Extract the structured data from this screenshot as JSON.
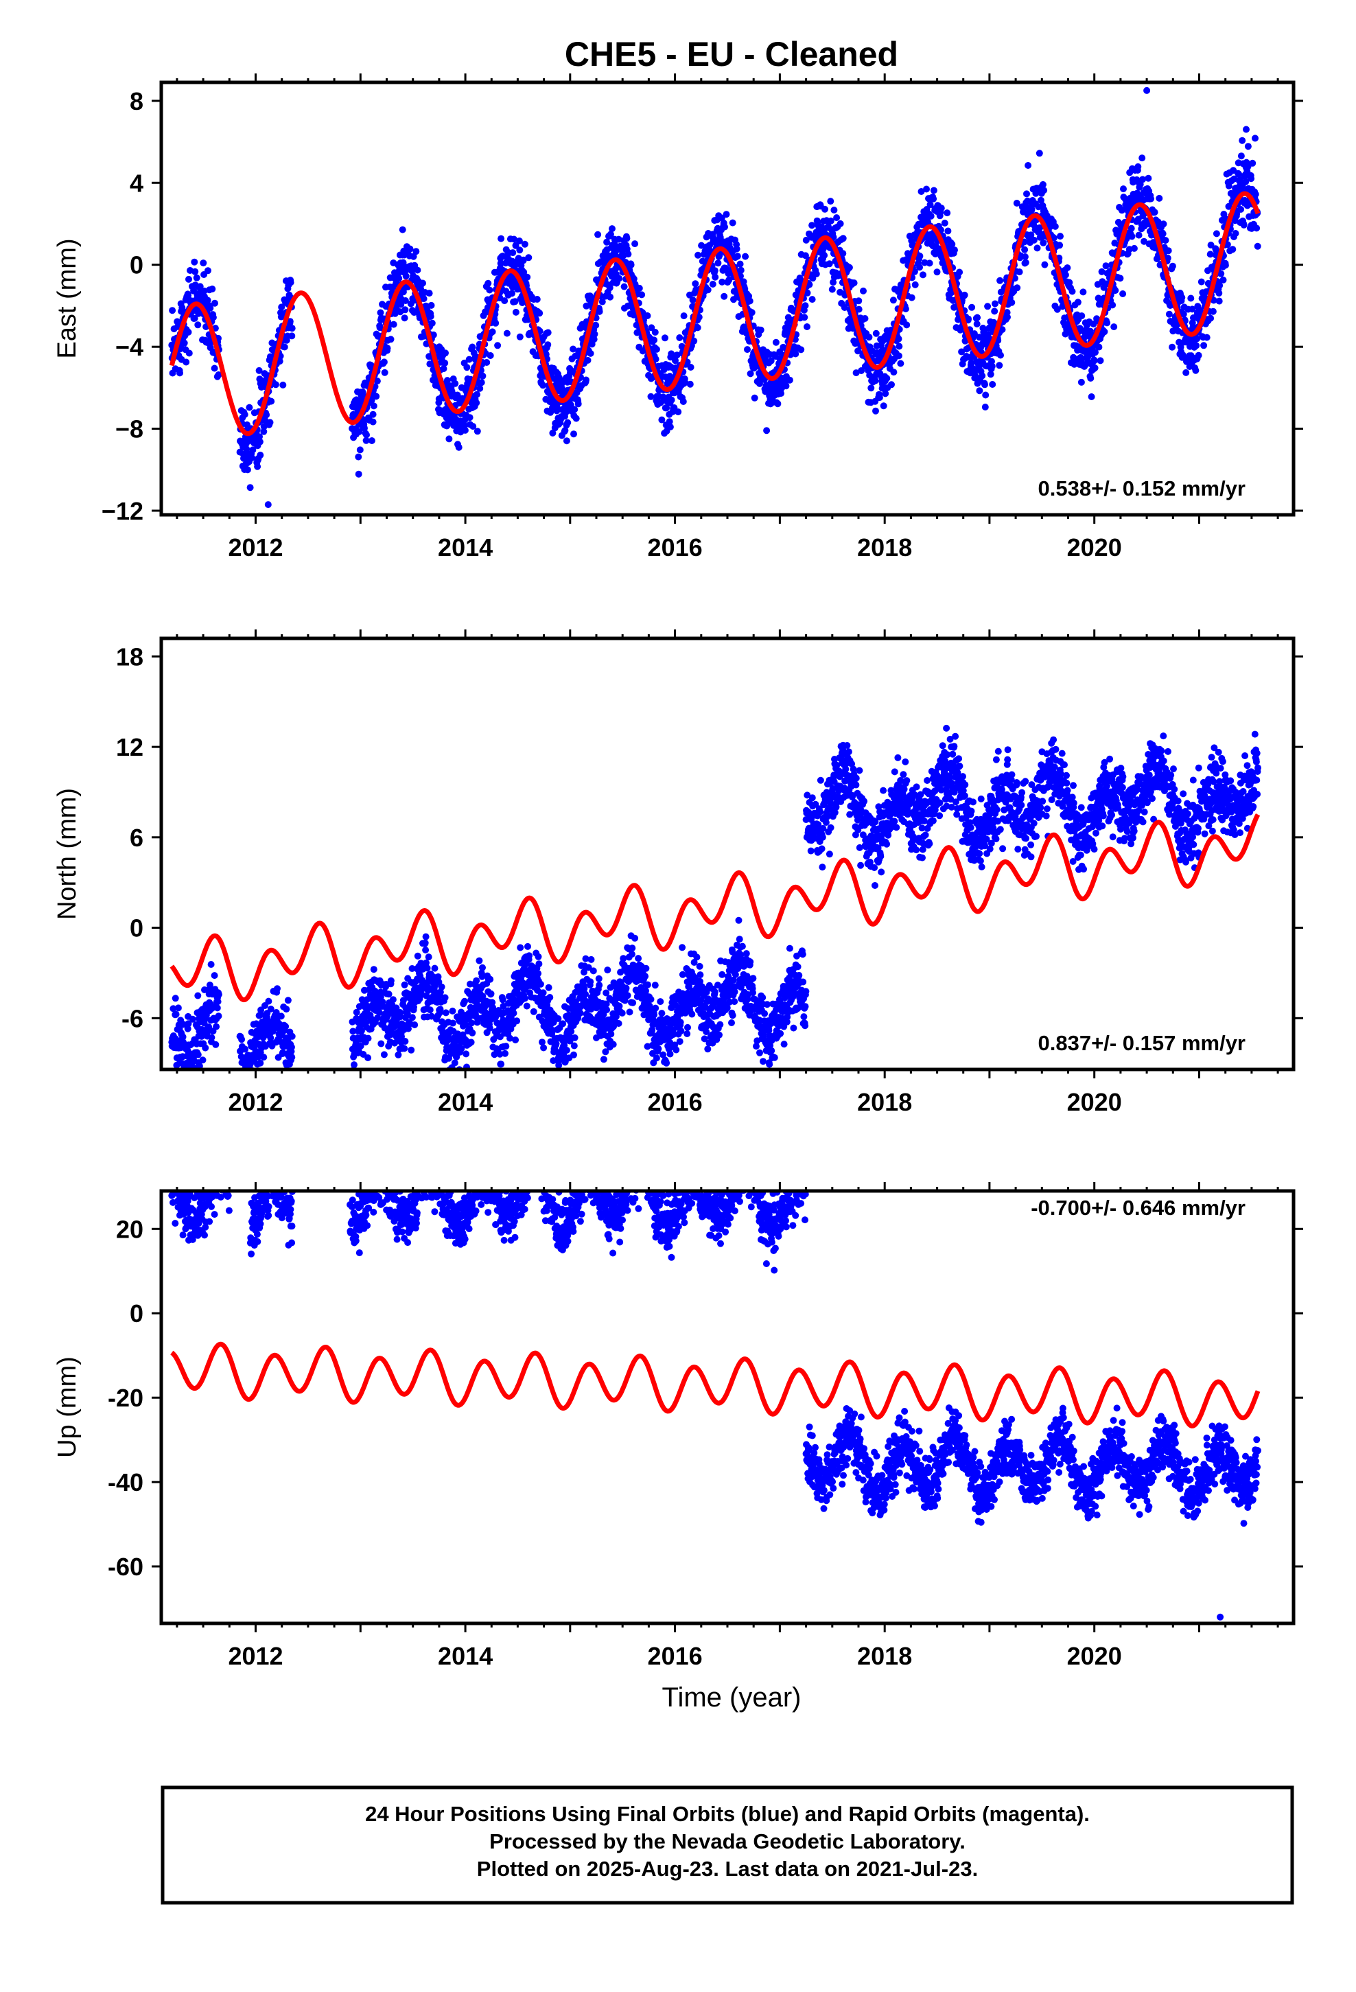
{
  "title": "CHE5  - EU - Cleaned",
  "xlabel": "Time (year)",
  "colors": {
    "data": "#0000ff",
    "model": "#ff0000",
    "frame": "#000000"
  },
  "footer": {
    "line1": "24 Hour Positions Using Final Orbits (blue) and Rapid Orbits (magenta).",
    "line2": "Processed by the Nevada Geodetic Laboratory.",
    "line3": "Plotted on 2025-Aug-23. Last data on 2021-Jul-23."
  },
  "chart_data": [
    {
      "type": "scatter",
      "component": "east",
      "ylabel": "East (mm)",
      "rate_label": "0.538+/- 0.152 mm/yr",
      "xlim": [
        2011.1,
        2021.9
      ],
      "ylim": [
        -12.2,
        8.9
      ],
      "xticks": [
        2012,
        2014,
        2016,
        2018,
        2020
      ],
      "yticks": [
        -12,
        -8,
        -4,
        0,
        4,
        8
      ],
      "ytick_labels": [
        "−12",
        "−8",
        "−4",
        "0",
        "4",
        "8"
      ],
      "segments": [
        {
          "start": 2011.2,
          "end": 2011.65,
          "offset": 0
        },
        {
          "start": 2011.85,
          "end": 2012.35,
          "offset": 0
        },
        {
          "start": 2012.92,
          "end": 2021.56,
          "offset": 0
        }
      ],
      "data_scatter": 0.9,
      "model": {
        "base": -2.75,
        "rate": 0.538,
        "annual_amp": 3.3,
        "annual_phase": 0.18,
        "semi_amp": 0.0,
        "semi_phase": 0.0
      },
      "model_range": [
        2011.2,
        2021.56
      ],
      "outliers": [
        [
          2012.12,
          -11.7
        ],
        [
          2012.05,
          -7.6
        ],
        [
          2014.85,
          -6.7
        ],
        [
          2016.76,
          -6.5
        ],
        [
          2020.5,
          8.5
        ],
        [
          2013.12,
          -7.3
        ]
      ]
    },
    {
      "type": "scatter",
      "component": "north",
      "ylabel": "North (mm)",
      "rate_label": "0.837+/- 0.157 mm/yr",
      "xlim": [
        2011.1,
        2021.9
      ],
      "ylim": [
        -9.4,
        19.2
      ],
      "xticks": [
        2012,
        2014,
        2016,
        2018,
        2020
      ],
      "yticks": [
        -6,
        0,
        6,
        12,
        18
      ],
      "ytick_labels": [
        "-6",
        "0",
        "6",
        "12",
        "18"
      ],
      "segments": [
        {
          "start": 2011.2,
          "end": 2011.65,
          "offset": -6.5
        },
        {
          "start": 2011.85,
          "end": 2012.35,
          "offset": -6.5
        },
        {
          "start": 2012.92,
          "end": 2017.25,
          "offset": -5.1
        },
        {
          "start": 2017.25,
          "end": 2021.56,
          "offset": 7.4
        }
      ],
      "data_scatter": 1.1,
      "model": {
        "base": 0.9,
        "rate": 0.837,
        "annual_amp": 1.0,
        "annual_phase": 0.25,
        "semi_amp": 1.5,
        "semi_phase": 0.0
      },
      "model_range": [
        2011.2,
        2021.56
      ],
      "outliers": [
        [
          2015.25,
          -7.3
        ],
        [
          2011.3,
          -9.0
        ],
        [
          2017.42,
          8.8
        ]
      ]
    },
    {
      "type": "scatter",
      "component": "up",
      "ylabel": "Up (mm)",
      "rate_label": "-0.700+/- 0.646 mm/yr",
      "xlim": [
        2011.1,
        2021.9
      ],
      "ylim": [
        -73.5,
        29.0
      ],
      "xticks": [
        2012,
        2014,
        2016,
        2018,
        2020
      ],
      "yticks": [
        -60,
        -40,
        -20,
        0,
        20
      ],
      "ytick_labels": [
        "-60",
        "-40",
        "-20",
        "0",
        "20"
      ],
      "segments": [
        {
          "start": 2011.2,
          "end": 2011.75,
          "offset": 25.5
        },
        {
          "start": 2011.95,
          "end": 2012.35,
          "offset": 25.5
        },
        {
          "start": 2012.9,
          "end": 2017.25,
          "offset": 27.0
        },
        {
          "start": 2017.25,
          "end": 2021.56,
          "offset": -35.5
        }
      ],
      "data_scatter": 3.3,
      "model": {
        "base": -16.8,
        "rate": -0.7,
        "annual_amp": 1.6,
        "annual_phase": 0.3,
        "semi_amp": 5.3,
        "semi_phase": 0.05
      },
      "model_range": [
        2011.2,
        2021.56
      ],
      "outliers": [
        [
          2011.55,
          26.0
        ],
        [
          2015.6,
          26.3
        ],
        [
          2014.75,
          24.2
        ],
        [
          2021.2,
          -72.0
        ],
        [
          2017.6,
          -35.0
        ]
      ]
    }
  ]
}
